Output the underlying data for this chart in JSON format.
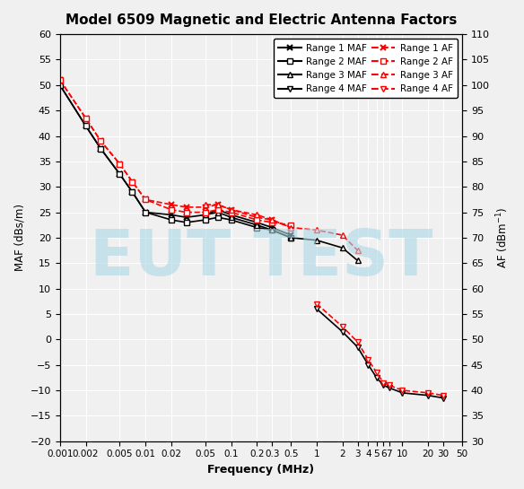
{
  "title": "Model 6509 Magnetic and Electric Antenna Factors",
  "xlabel": "Frequency (MHz)",
  "ylabel_left": "MAF (dBs/m)",
  "ylabel_right": "AF (dBm⁻¹)",
  "ylim_left": [
    -20,
    60
  ],
  "ylim_right": [
    30,
    110
  ],
  "watermark": "EUT TEST",
  "freq_ticks": [
    0.001,
    0.002,
    0.005,
    0.01,
    0.02,
    0.05,
    0.1,
    0.2,
    0.3,
    0.5,
    1,
    2,
    3,
    4,
    5,
    6,
    7,
    10,
    20,
    30,
    50
  ],
  "freq_tick_labels": [
    "0.001",
    "0.002",
    "0.005",
    "0.01",
    "0.02",
    "0.05",
    "0.1",
    "0.2",
    "0.3",
    "0.5",
    "1",
    "2",
    "3",
    "4",
    "5",
    "6",
    "7",
    "10",
    "20",
    "30",
    "50"
  ],
  "range1_maf_x": [
    0.001,
    0.002,
    0.003,
    0.005,
    0.007,
    0.01,
    0.02,
    0.03,
    0.05,
    0.07,
    0.1,
    0.2,
    0.3,
    0.5
  ],
  "range1_maf_y": [
    50.0,
    42.0,
    37.5,
    32.5,
    29.0,
    25.0,
    24.5,
    24.0,
    24.5,
    25.5,
    24.5,
    23.0,
    22.0,
    20.5
  ],
  "range2_maf_x": [
    0.001,
    0.002,
    0.003,
    0.005,
    0.007,
    0.01,
    0.02,
    0.03,
    0.05,
    0.07,
    0.1,
    0.2,
    0.3,
    0.5
  ],
  "range2_maf_y": [
    50.0,
    42.0,
    37.5,
    32.5,
    29.0,
    25.0,
    23.5,
    23.0,
    23.5,
    24.0,
    23.5,
    22.0,
    21.5,
    20.0
  ],
  "range3_maf_x": [
    0.05,
    0.07,
    0.1,
    0.2,
    0.3,
    0.5,
    1.0,
    2.0,
    3.0
  ],
  "range3_maf_y": [
    24.5,
    25.0,
    24.0,
    22.5,
    21.5,
    20.0,
    19.5,
    18.0,
    15.5
  ],
  "range4_maf_x": [
    1.0,
    2.0,
    3.0,
    4.0,
    5.0,
    6.0,
    7.0,
    10.0,
    20.0,
    30.0
  ],
  "range4_maf_y": [
    6.0,
    1.5,
    -1.5,
    -5.0,
    -7.5,
    -9.0,
    -9.5,
    -10.5,
    -11.0,
    -11.5
  ],
  "range1_af_x": [
    0.001,
    0.002,
    0.003,
    0.005,
    0.007,
    0.01,
    0.02,
    0.03,
    0.05,
    0.07,
    0.1,
    0.2,
    0.3,
    0.5
  ],
  "range1_af_y": [
    51.0,
    43.5,
    39.0,
    34.5,
    31.0,
    27.5,
    26.5,
    26.0,
    26.0,
    26.5,
    25.5,
    24.0,
    23.5,
    22.0
  ],
  "range2_af_x": [
    0.001,
    0.002,
    0.003,
    0.005,
    0.007,
    0.01,
    0.02,
    0.03,
    0.05,
    0.07,
    0.1,
    0.2,
    0.3,
    0.5
  ],
  "range2_af_y": [
    51.0,
    43.5,
    39.0,
    34.5,
    31.0,
    27.5,
    25.5,
    25.0,
    25.0,
    25.5,
    25.0,
    23.5,
    23.0,
    22.5
  ],
  "range3_af_x": [
    0.05,
    0.07,
    0.1,
    0.2,
    0.3,
    0.5,
    1.0,
    2.0,
    3.0
  ],
  "range3_af_y": [
    26.5,
    26.5,
    25.5,
    24.5,
    23.5,
    22.0,
    21.5,
    20.5,
    17.5
  ],
  "range4_af_x": [
    1.0,
    2.0,
    3.0,
    4.0,
    5.0,
    6.0,
    7.0,
    10.0,
    20.0,
    30.0
  ],
  "range4_af_y": [
    7.0,
    2.5,
    -0.5,
    -4.0,
    -6.5,
    -8.5,
    -9.0,
    -10.0,
    -10.5,
    -11.0
  ],
  "background_color": "#f0f0f0",
  "grid_color": "#ffffff",
  "watermark_color": "#add8e6",
  "watermark_alpha": 0.6
}
